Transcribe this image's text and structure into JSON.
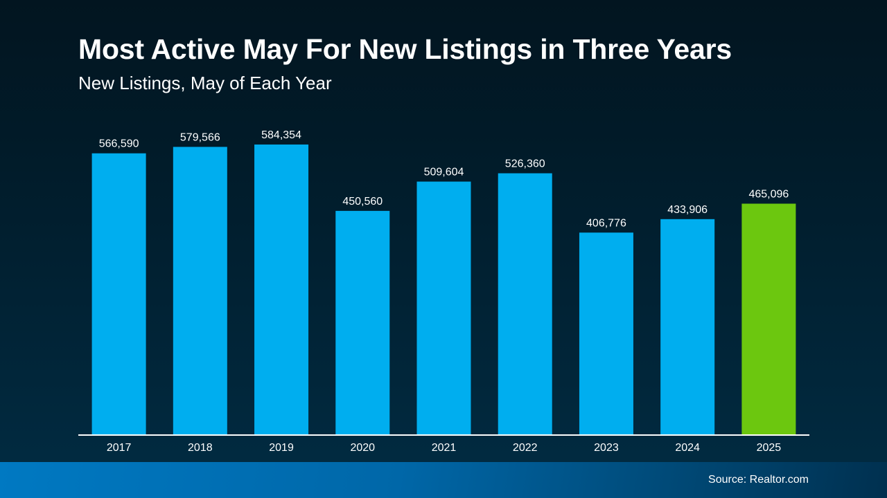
{
  "chart_data": {
    "type": "bar",
    "title": "Most Active May For New Listings in Three Years",
    "subtitle": "New Listings, May of Each Year",
    "categories": [
      "2017",
      "2018",
      "2019",
      "2020",
      "2021",
      "2022",
      "2023",
      "2024",
      "2025"
    ],
    "values": [
      566590,
      579566,
      584354,
      450560,
      509604,
      526360,
      406776,
      433906,
      465096
    ],
    "data_labels": [
      "566,590",
      "579,566",
      "584,354",
      "450,560",
      "509,604",
      "526,360",
      "406,776",
      "433,906",
      "465,096"
    ],
    "xlabel": "",
    "ylabel": "",
    "ylim": [
      0,
      700000
    ],
    "grid": false,
    "colors": {
      "default": "#00aeef",
      "highlight": "#6cc70f",
      "highlight_category": "2025"
    }
  },
  "footer": {
    "source": "Source: Realtor.com"
  }
}
